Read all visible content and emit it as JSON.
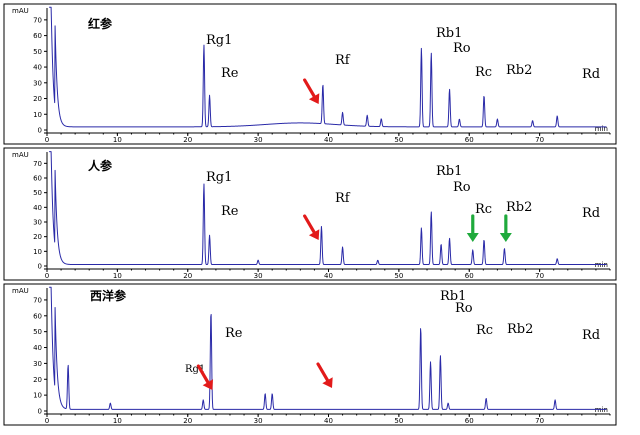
{
  "colors": {
    "trace": "#2a2aa8",
    "red_arrow": "#e21a1a",
    "green_arrow": "#1faa3c"
  },
  "chart_data": [
    {
      "type": "line",
      "title": "红参",
      "yunit": "mAU",
      "xunit": "min",
      "xlim": [
        0,
        80
      ],
      "ylim": [
        0,
        75
      ],
      "xticks": [
        "0",
        "10",
        "20",
        "30",
        "40",
        "50",
        "60",
        "70"
      ],
      "yticks": [
        "0",
        "10",
        "20",
        "30",
        "40",
        "50",
        "60",
        "70"
      ],
      "peaks": [
        {
          "label": "Rg1",
          "x": 22.3,
          "y": 52
        },
        {
          "label": "Re",
          "x": 23.1,
          "y": 20
        },
        {
          "label": "Rf",
          "x": 39.2,
          "y": 25
        },
        {
          "label": "Rb1",
          "x": 53.2,
          "y": 50
        },
        {
          "label": "Ro",
          "x": 54.6,
          "y": 47
        },
        {
          "label": "Rc",
          "x": 57.2,
          "y": 24
        },
        {
          "label": "Rb2",
          "x": 62.1,
          "y": 20
        },
        {
          "label": "Rd",
          "x": 72.5,
          "y": 7
        }
      ],
      "minor_peaks": [
        [
          42,
          8
        ],
        [
          45.5,
          7
        ],
        [
          47.5,
          5
        ],
        [
          58.6,
          5
        ],
        [
          64,
          5
        ],
        [
          69,
          4
        ]
      ],
      "baseline": 2,
      "arrows": [
        {
          "color": "red",
          "x": 38.6
        }
      ]
    },
    {
      "type": "line",
      "title": "人参",
      "yunit": "mAU",
      "xunit": "min",
      "xlim": [
        0,
        80
      ],
      "ylim": [
        0,
        75
      ],
      "xticks": [
        "0",
        "10",
        "20",
        "30",
        "40",
        "50",
        "60",
        "70"
      ],
      "yticks": [
        "0",
        "10",
        "20",
        "30",
        "40",
        "50",
        "60",
        "70"
      ],
      "peaks": [
        {
          "label": "Rg1",
          "x": 22.3,
          "y": 55
        },
        {
          "label": "Re",
          "x": 23.1,
          "y": 20
        },
        {
          "label": "Rf",
          "x": 39.0,
          "y": 26
        },
        {
          "label": "Rb1",
          "x": 53.2,
          "y": 25
        },
        {
          "label": "Ro",
          "x": 54.6,
          "y": 36
        },
        {
          "label": "Rc",
          "x": 57.2,
          "y": 18
        },
        {
          "label": "Rb2",
          "x": 62.1,
          "y": 17
        },
        {
          "label": "Rd",
          "x": 72.5,
          "y": 4
        }
      ],
      "minor_peaks": [
        [
          42,
          12
        ],
        [
          56,
          14
        ],
        [
          60.5,
          10
        ],
        [
          65,
          11
        ],
        [
          30,
          3
        ],
        [
          47,
          3
        ]
      ],
      "baseline": 1,
      "arrows": [
        {
          "color": "red",
          "x": 38.6
        },
        {
          "color": "green",
          "x": 60.5
        },
        {
          "color": "green",
          "x": 65.2
        }
      ]
    },
    {
      "type": "line",
      "title": "西洋参",
      "yunit": "mAU",
      "xunit": "min",
      "xlim": [
        0,
        80
      ],
      "ylim": [
        0,
        75
      ],
      "xticks": [
        "0",
        "10",
        "20",
        "30",
        "40",
        "50",
        "60",
        "70"
      ],
      "yticks": [
        "0",
        "10",
        "20",
        "30",
        "40",
        "50",
        "60",
        "70"
      ],
      "peaks": [
        {
          "label": "Rg1",
          "x": 22.2,
          "y": 6
        },
        {
          "label": "Re",
          "x": 23.3,
          "y": 62
        },
        {
          "label": "Rb1",
          "x": 53.1,
          "y": 52
        },
        {
          "label": "Ro",
          "x": 54.5,
          "y": 30
        },
        {
          "label": "Rc",
          "x": 55.9,
          "y": 34
        },
        {
          "label": "Rb2",
          "x": 62.4,
          "y": 7
        },
        {
          "label": "Rd",
          "x": 72.2,
          "y": 6
        }
      ],
      "minor_peaks": [
        [
          3.0,
          28
        ],
        [
          31,
          10
        ],
        [
          32,
          10
        ],
        [
          57,
          4
        ],
        [
          9,
          4
        ]
      ],
      "baseline": 1,
      "arrows": [
        {
          "color": "red",
          "x": 23.5
        },
        {
          "color": "red",
          "x": 40.5
        }
      ]
    }
  ]
}
